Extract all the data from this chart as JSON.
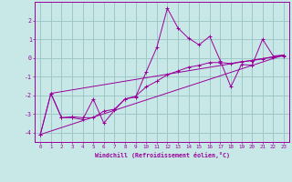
{
  "xlabel": "Windchill (Refroidissement éolien,°C)",
  "background_color": "#c8e8e8",
  "grid_color": "#a0c8c8",
  "line_color": "#990099",
  "xlim": [
    -0.5,
    23.5
  ],
  "ylim": [
    -4.5,
    3.0
  ],
  "yticks": [
    -4,
    -3,
    -2,
    -1,
    0,
    1,
    2
  ],
  "xticks": [
    0,
    1,
    2,
    3,
    4,
    5,
    6,
    7,
    8,
    9,
    10,
    11,
    12,
    13,
    14,
    15,
    16,
    17,
    18,
    19,
    20,
    21,
    22,
    23
  ],
  "series1_x": [
    0,
    1,
    2,
    3,
    4,
    5,
    6,
    7,
    8,
    9,
    10,
    11,
    12,
    13,
    14,
    15,
    16,
    17,
    18,
    19,
    20,
    21,
    22,
    23
  ],
  "series1_y": [
    -4.1,
    -1.9,
    -3.2,
    -3.2,
    -3.3,
    -2.2,
    -3.5,
    -2.8,
    -2.2,
    -2.1,
    -0.75,
    0.55,
    2.65,
    1.6,
    1.05,
    0.7,
    1.15,
    -0.15,
    -1.55,
    -0.35,
    -0.4,
    1.0,
    0.1,
    0.15
  ],
  "series2_x": [
    0,
    1,
    2,
    3,
    4,
    5,
    6,
    7,
    8,
    9,
    10,
    11,
    12,
    13,
    14,
    15,
    16,
    17,
    18,
    19,
    20,
    21,
    22,
    23
  ],
  "series2_y": [
    -4.1,
    -1.9,
    -3.2,
    -3.15,
    -3.2,
    -3.2,
    -2.85,
    -2.75,
    -2.2,
    -2.05,
    -1.55,
    -1.25,
    -0.9,
    -0.7,
    -0.5,
    -0.4,
    -0.25,
    -0.25,
    -0.3,
    -0.2,
    -0.15,
    -0.05,
    0.05,
    0.1
  ],
  "series3_x": [
    0,
    23
  ],
  "series3_y": [
    -4.1,
    0.15
  ],
  "series4_x": [
    1,
    23
  ],
  "series4_y": [
    -1.9,
    0.15
  ]
}
